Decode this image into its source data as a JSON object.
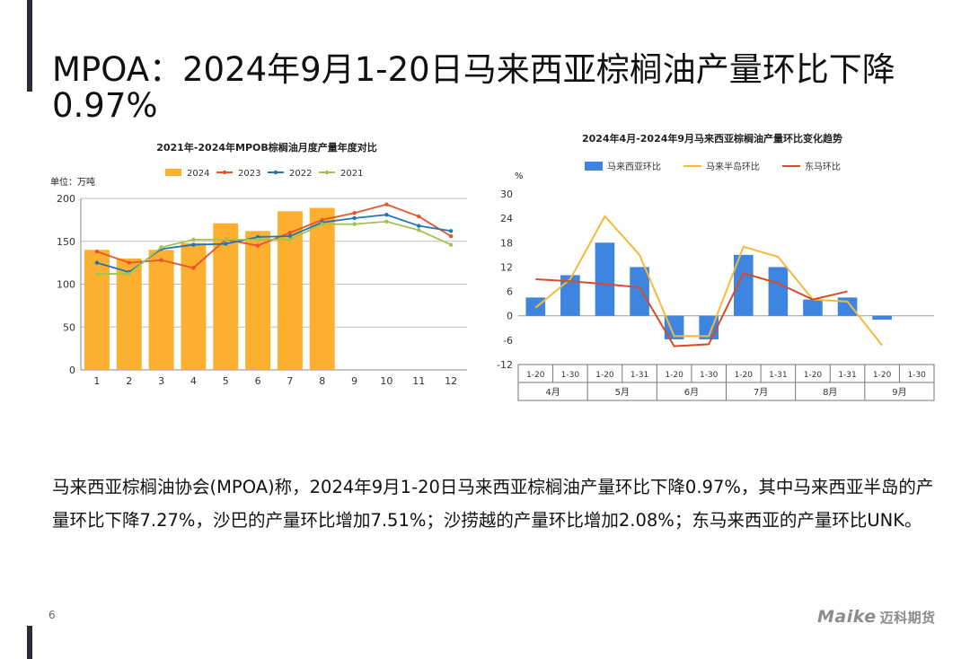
{
  "slide": {
    "title": "MPOA：2024年9月1-20日马来西亚棕榈油产量环比下降0.97%",
    "body": "马来西亚棕榈油协会(MPOA)称，2024年9月1-20日马来西亚棕榈油产量环比下降0.97%，其中马来西亚半岛的产量环比下降7.27%，沙巴的产量环比增加7.51%；沙捞越的产量环比增加2.08%；东马来西亚的产量环比UNK。",
    "page_number": "6",
    "logo_text": "Maike",
    "logo_cn": "迈科期货",
    "colors": {
      "accent_bar": "#2a2d3a"
    }
  },
  "chart_data": [
    {
      "type": "bar",
      "title": "2021年-2024年MPOB棕榈油月度产量年度对比",
      "unit_label": "单位：万吨",
      "categories": [
        "1",
        "2",
        "3",
        "4",
        "5",
        "6",
        "7",
        "8",
        "9",
        "10",
        "11",
        "12"
      ],
      "ylim": [
        0,
        200
      ],
      "yticks": [
        0,
        50,
        100,
        150,
        200
      ],
      "legend_position": "top",
      "grid": true,
      "series": [
        {
          "name": "2024",
          "type": "bar",
          "color": "#FDB02F",
          "values": [
            140,
            130,
            140,
            148,
            171,
            162,
            185,
            189,
            null,
            null,
            null,
            null
          ]
        },
        {
          "name": "2023",
          "type": "line",
          "color": "#E8532A",
          "values": [
            138,
            125,
            128,
            119,
            152,
            145,
            160,
            175,
            183,
            193,
            179,
            156
          ]
        },
        {
          "name": "2022",
          "type": "line",
          "color": "#2474B5",
          "values": [
            125,
            114,
            141,
            146,
            147,
            155,
            156,
            172,
            177,
            181,
            168,
            162
          ]
        },
        {
          "name": "2021",
          "type": "line",
          "color": "#A6C24E",
          "values": [
            112,
            112,
            143,
            152,
            152,
            152,
            152,
            170,
            170,
            173,
            163,
            146
          ]
        }
      ]
    },
    {
      "type": "bar",
      "title": "2024年4月-2024年9月马来西亚棕榈油产量环比变化趋势",
      "unit_label": "%",
      "x_sub": [
        "1-20",
        "1-30",
        "1-20",
        "1-31",
        "1-20",
        "1-30",
        "1-20",
        "1-31",
        "1-20",
        "1-31",
        "1-20",
        "1-30"
      ],
      "x_groups": [
        "4月",
        "5月",
        "6月",
        "7月",
        "8月",
        "9月"
      ],
      "ylim": [
        -12,
        30
      ],
      "yticks": [
        -12,
        -6,
        0,
        6,
        12,
        18,
        24,
        30
      ],
      "legend_position": "top",
      "grid": false,
      "series": [
        {
          "name": "马来西亚环比",
          "type": "bar",
          "color": "#3D85E0",
          "values": [
            4.5,
            10,
            18,
            12,
            -5.8,
            -5.8,
            15,
            12,
            4,
            4.5,
            -0.97,
            null
          ]
        },
        {
          "name": "马来半岛环比",
          "type": "line",
          "color": "#F5B93D",
          "values": [
            2,
            9,
            24.5,
            15,
            -5,
            -5,
            17,
            14.5,
            4,
            3.5,
            -7.27,
            null
          ]
        },
        {
          "name": "东马环比",
          "type": "line",
          "color": "#D64B28",
          "values": [
            9,
            8.5,
            7.8,
            7,
            -7.5,
            -7,
            10.5,
            8,
            4,
            6,
            null,
            null
          ]
        }
      ]
    }
  ]
}
